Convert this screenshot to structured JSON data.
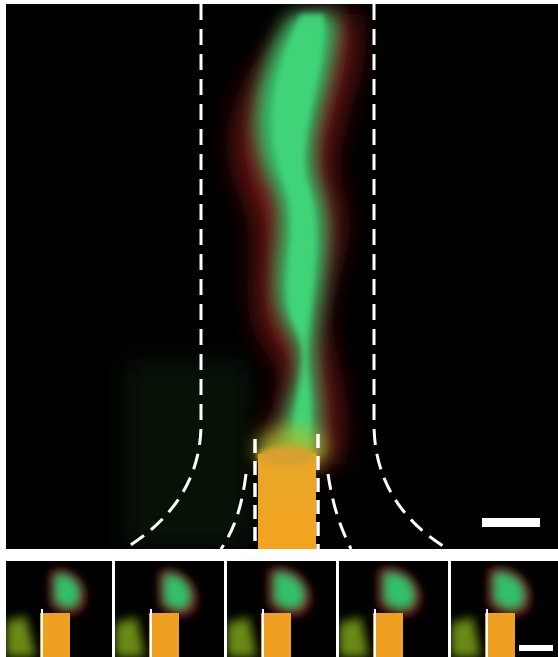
{
  "figure": {
    "main_panel": {
      "description_icons": [
        "plume-green",
        "plume-red",
        "nozzle-orange",
        "channel-wall-dashed",
        "scale-bar"
      ]
    },
    "strip": {
      "frame_count": 5
    },
    "colors": {
      "background": "#000000",
      "separator": "#ffffff",
      "green_fluid": "#2ecc60",
      "red_fluid": "#8a1a1a",
      "orange_fluid": "#f0a020",
      "dashed_line": "#ffffff",
      "scale_bar": "#ffffff"
    }
  }
}
